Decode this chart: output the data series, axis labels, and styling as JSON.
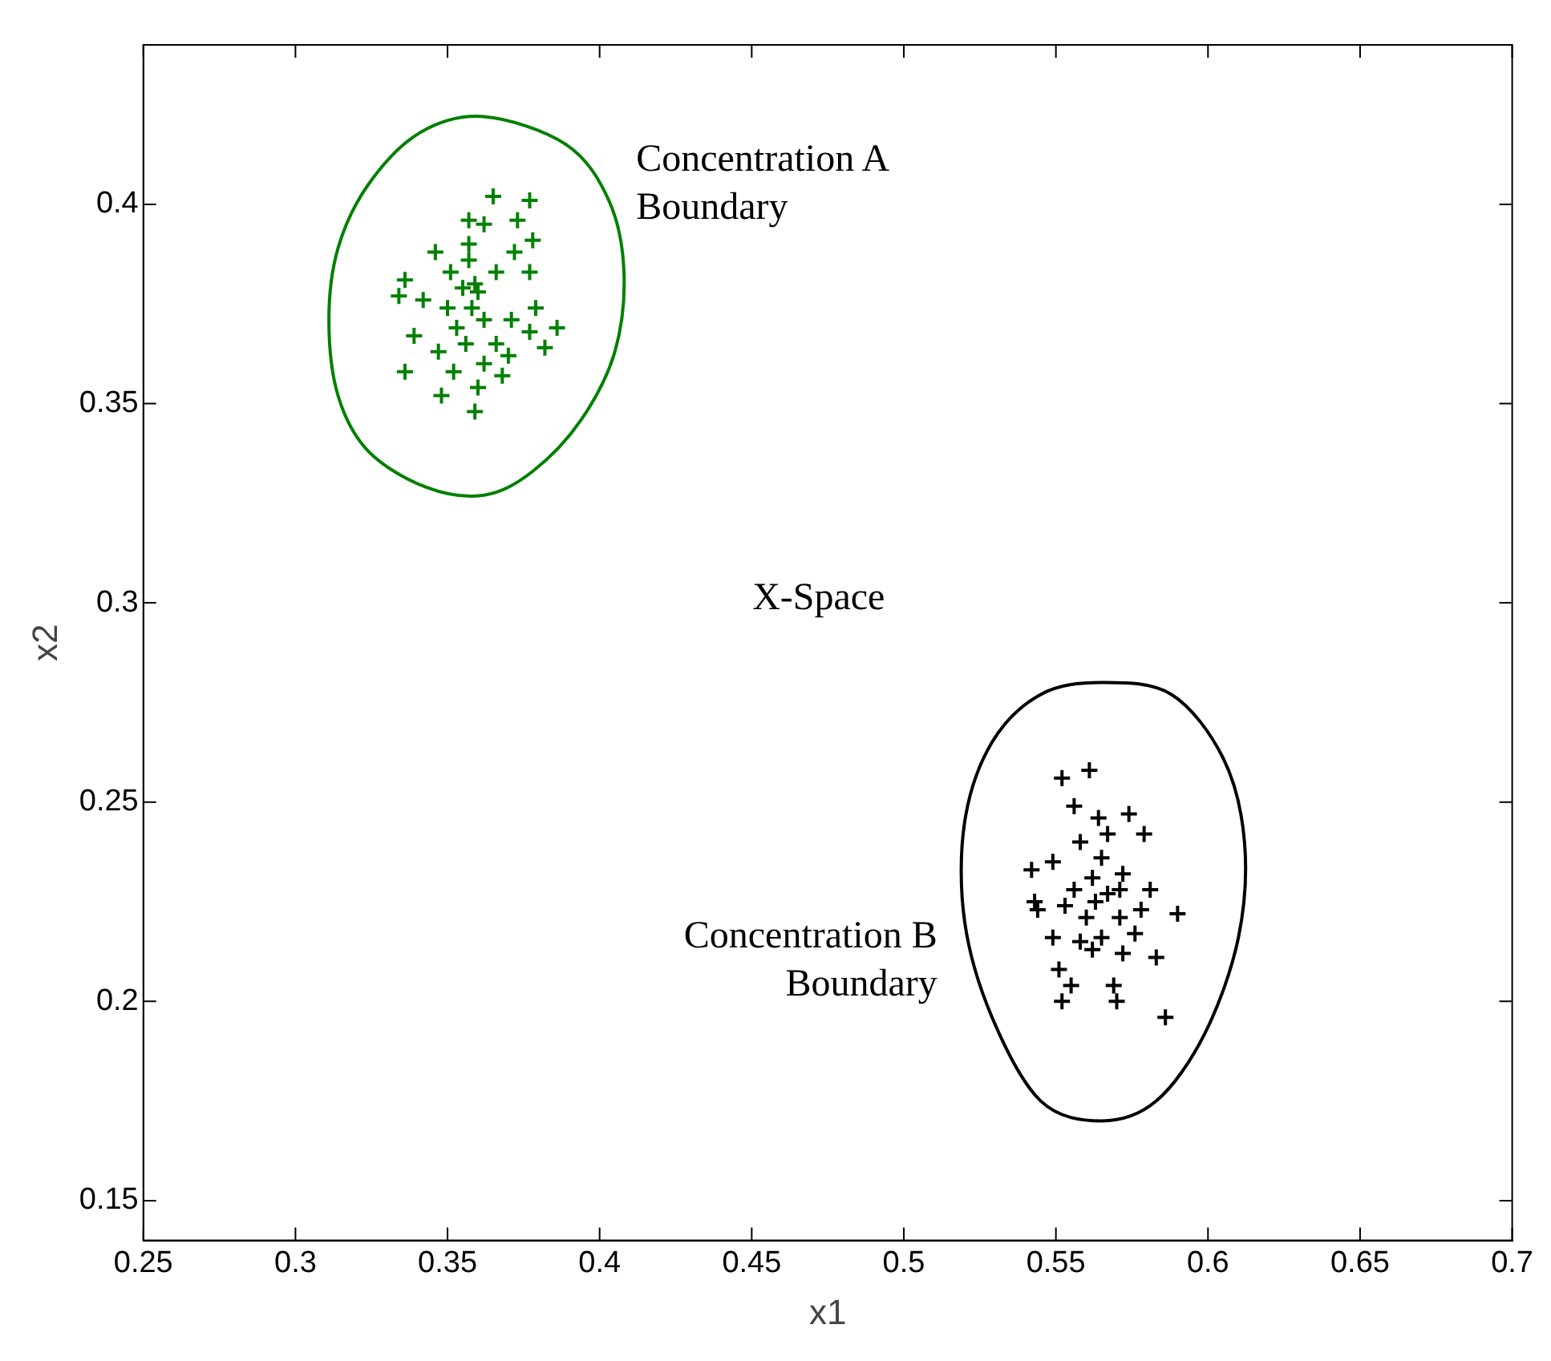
{
  "chart_data": {
    "type": "scatter",
    "xlabel": "x1",
    "ylabel": "x2",
    "xlim": [
      0.25,
      0.7
    ],
    "ylim": [
      0.14,
      0.44
    ],
    "xticks": [
      0.25,
      0.3,
      0.35,
      0.4,
      0.45,
      0.5,
      0.55,
      0.6,
      0.65,
      0.7
    ],
    "yticks": [
      0.15,
      0.2,
      0.25,
      0.3,
      0.35,
      0.4
    ],
    "grid": false,
    "legend": false,
    "marker": "cross",
    "annotations": [
      "Concentration A\nBoundary",
      "Concentration B\nBoundary",
      "X-Space"
    ],
    "series": [
      {
        "type": "scatter",
        "color": "#008000",
        "x": [
          0.365,
          0.377,
          0.357,
          0.362,
          0.373,
          0.378,
          0.346,
          0.357,
          0.372,
          0.336,
          0.334,
          0.342,
          0.355,
          0.36,
          0.366,
          0.377,
          0.379,
          0.386,
          0.382,
          0.339,
          0.336,
          0.347,
          0.352,
          0.348,
          0.359,
          0.36,
          0.368,
          0.37,
          0.353,
          0.358,
          0.362,
          0.351,
          0.357,
          0.35,
          0.371,
          0.356,
          0.366,
          0.377,
          0.362,
          0.359
        ],
        "values": [
          0.402,
          0.401,
          0.396,
          0.395,
          0.396,
          0.391,
          0.388,
          0.39,
          0.388,
          0.381,
          0.377,
          0.376,
          0.379,
          0.378,
          0.383,
          0.383,
          0.374,
          0.369,
          0.364,
          0.367,
          0.358,
          0.363,
          0.358,
          0.352,
          0.348,
          0.354,
          0.357,
          0.362,
          0.369,
          0.374,
          0.371,
          0.383,
          0.386,
          0.374,
          0.371,
          0.365,
          0.365,
          0.368,
          0.36,
          0.38
        ]
      },
      {
        "type": "scatter",
        "color": "#000000",
        "x": [
          0.552,
          0.561,
          0.556,
          0.564,
          0.574,
          0.579,
          0.542,
          0.549,
          0.562,
          0.567,
          0.572,
          0.581,
          0.59,
          0.543,
          0.544,
          0.553,
          0.56,
          0.571,
          0.578,
          0.549,
          0.558,
          0.565,
          0.572,
          0.583,
          0.551,
          0.555,
          0.552,
          0.569,
          0.57,
          0.586,
          0.565,
          0.558,
          0.567,
          0.563,
          0.576,
          0.556,
          0.562,
          0.571
        ],
        "values": [
          0.256,
          0.258,
          0.249,
          0.246,
          0.247,
          0.242,
          0.233,
          0.235,
          0.231,
          0.227,
          0.232,
          0.228,
          0.222,
          0.225,
          0.223,
          0.224,
          0.221,
          0.221,
          0.223,
          0.216,
          0.215,
          0.216,
          0.212,
          0.211,
          0.208,
          0.204,
          0.2,
          0.204,
          0.2,
          0.196,
          0.236,
          0.24,
          0.242,
          0.225,
          0.217,
          0.228,
          0.213,
          0.228
        ]
      }
    ]
  }
}
